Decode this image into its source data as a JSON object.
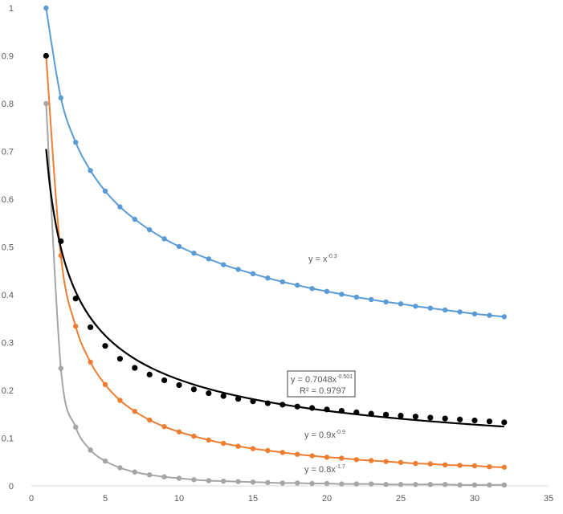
{
  "chart_data": {
    "type": "scatter",
    "title": "",
    "xlabel": "",
    "ylabel": "",
    "xlim": [
      0,
      35
    ],
    "ylim": [
      0,
      1
    ],
    "x_ticks": [
      0,
      5,
      10,
      15,
      20,
      25,
      30,
      35
    ],
    "y_ticks": [
      0,
      0.1,
      0.2,
      0.3,
      0.4,
      0.5,
      0.6,
      0.7,
      0.8,
      0.9,
      1
    ],
    "grid": false,
    "legend": "none",
    "x": [
      1,
      2,
      3,
      4,
      5,
      6,
      7,
      8,
      9,
      10,
      11,
      12,
      13,
      14,
      15,
      16,
      17,
      18,
      19,
      20,
      21,
      22,
      23,
      24,
      25,
      26,
      27,
      28,
      29,
      30,
      31,
      32
    ],
    "series": [
      {
        "color": "#5B9BD5",
        "style": "line+markers",
        "values": [
          1.0,
          0.812,
          0.719,
          0.66,
          0.617,
          0.584,
          0.558,
          0.536,
          0.517,
          0.501,
          0.487,
          0.475,
          0.463,
          0.453,
          0.444,
          0.435,
          0.427,
          0.42,
          0.413,
          0.407,
          0.401,
          0.395,
          0.39,
          0.385,
          0.381,
          0.376,
          0.372,
          0.368,
          0.364,
          0.36,
          0.357,
          0.354
        ],
        "label": {
          "base": "y = x",
          "exp": "-0.3"
        }
      },
      {
        "color": "#ED7D31",
        "style": "line+markers",
        "values": [
          0.9,
          0.482,
          0.334,
          0.259,
          0.212,
          0.179,
          0.156,
          0.138,
          0.124,
          0.113,
          0.104,
          0.096,
          0.089,
          0.083,
          0.078,
          0.074,
          0.07,
          0.066,
          0.063,
          0.06,
          0.058,
          0.055,
          0.053,
          0.051,
          0.049,
          0.047,
          0.046,
          0.044,
          0.043,
          0.042,
          0.04,
          0.039
        ],
        "label": {
          "base": "y = 0.9x",
          "exp": "-0.9"
        }
      },
      {
        "color": "#A5A5A5",
        "style": "line+markers",
        "values": [
          0.8,
          0.246,
          0.123,
          0.075,
          0.052,
          0.038,
          0.029,
          0.023,
          0.019,
          0.016,
          0.013,
          0.011,
          0.01,
          0.009,
          0.008,
          0.007,
          0.006,
          0.006,
          0.005,
          0.005,
          0.004,
          0.004,
          0.004,
          0.003,
          0.003,
          0.003,
          0.003,
          0.003,
          0.002,
          0.002,
          0.002,
          0.002
        ],
        "label": {
          "base": "y = 0.8x",
          "exp": "-1.7"
        }
      },
      {
        "color": "#000000",
        "style": "markers",
        "values": [
          0.9,
          0.512,
          0.392,
          0.332,
          0.293,
          0.266,
          0.247,
          0.233,
          0.221,
          0.211,
          0.202,
          0.194,
          0.188,
          0.182,
          0.177,
          0.173,
          0.17,
          0.166,
          0.163,
          0.16,
          0.157,
          0.154,
          0.151,
          0.149,
          0.147,
          0.145,
          0.143,
          0.141,
          0.139,
          0.137,
          0.135,
          0.133
        ]
      }
    ],
    "trendline": {
      "color": "#000000",
      "type": "power",
      "coef": 0.7048,
      "exponent": -0.501,
      "x_range": [
        1,
        32
      ],
      "label_line1": {
        "base": "y = 0.7048x",
        "exp": "-0.501"
      },
      "label_line2": "R² = 0.9797"
    }
  }
}
